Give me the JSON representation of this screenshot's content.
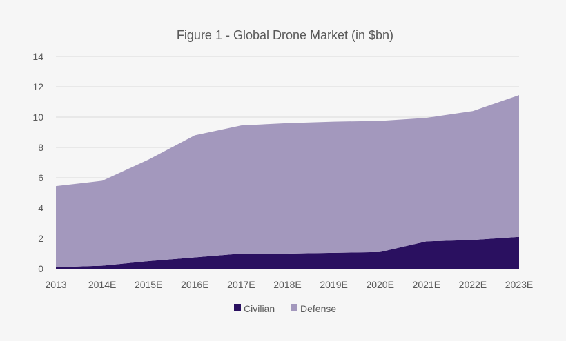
{
  "chart_data": {
    "type": "area",
    "stacked": true,
    "title": "Figure 1 - Global Drone Market (in $bn)",
    "xlabel": "",
    "ylabel": "",
    "categories": [
      "2013",
      "2014E",
      "2015E",
      "2016E",
      "2017E",
      "2018E",
      "2019E",
      "2020E",
      "2021E",
      "2022E",
      "2023E"
    ],
    "series": [
      {
        "name": "Civilian",
        "color": "#2a1060",
        "values": [
          0.1,
          0.2,
          0.5,
          0.75,
          1.0,
          1.0,
          1.05,
          1.1,
          1.8,
          1.9,
          2.1
        ]
      },
      {
        "name": "Defense",
        "color": "#a398bd",
        "values": [
          5.35,
          5.6,
          6.7,
          8.05,
          8.45,
          8.6,
          8.65,
          8.65,
          8.15,
          8.5,
          9.35
        ]
      }
    ],
    "ylim": [
      0,
      14
    ],
    "yticks": [
      0,
      2,
      4,
      6,
      8,
      10,
      12,
      14
    ],
    "grid": true,
    "legend": "bottom"
  }
}
